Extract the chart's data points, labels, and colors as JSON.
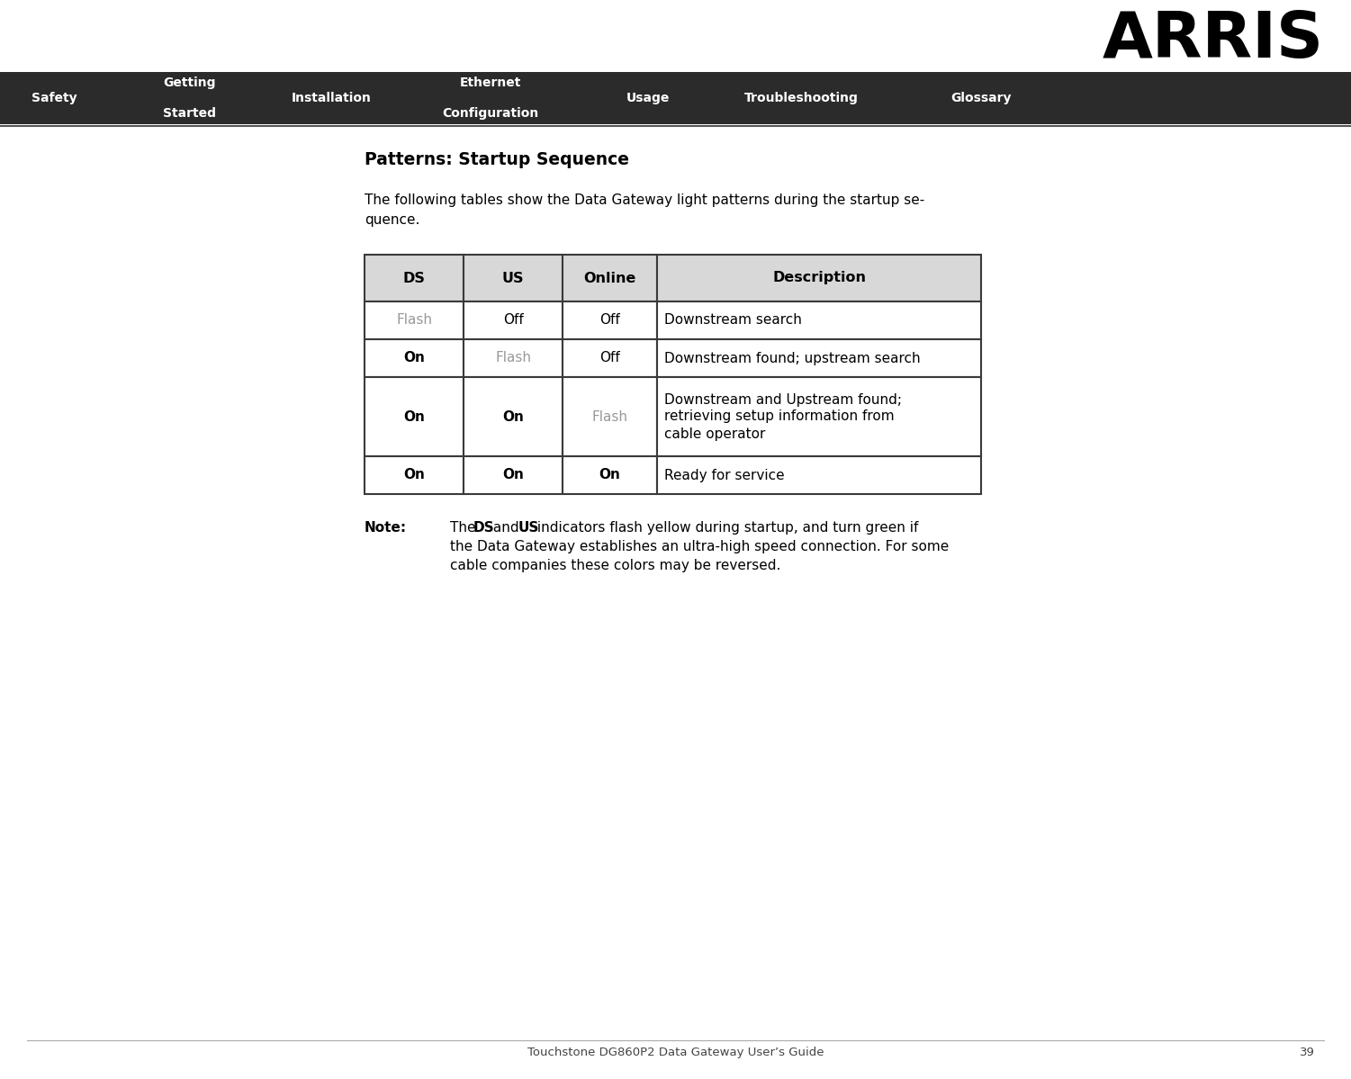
{
  "bg_color": "#ffffff",
  "logo_text": "ARRIS",
  "nav_bg": "#2b2b2b",
  "nav_text_color": "#ffffff",
  "nav_items": [
    {
      "line1": "Safety",
      "line2": ""
    },
    {
      "line1": "Getting",
      "line2": "Started"
    },
    {
      "line1": "Installation",
      "line2": ""
    },
    {
      "line1": "Ethernet",
      "line2": "Configuration"
    },
    {
      "line1": "Usage",
      "line2": ""
    },
    {
      "line1": "Troubleshooting",
      "line2": ""
    },
    {
      "line1": "Glossary",
      "line2": ""
    }
  ],
  "section_title": "Patterns: Startup Sequence",
  "intro_line1": "The following tables show the Data Gateway light patterns during the startup se-",
  "intro_line2": "quence.",
  "table_headers": [
    "DS",
    "US",
    "Online",
    "Description"
  ],
  "table_rows": [
    {
      "ds": "Flash",
      "us": "Off",
      "online": "Off",
      "desc": [
        "Downstream search"
      ],
      "ds_bold": false,
      "us_bold": false,
      "online_bold": false
    },
    {
      "ds": "On",
      "us": "Flash",
      "online": "Off",
      "desc": [
        "Downstream found; upstream search"
      ],
      "ds_bold": true,
      "us_bold": false,
      "online_bold": false
    },
    {
      "ds": "On",
      "us": "On",
      "online": "Flash",
      "desc": [
        "Downstream and Upstream found;",
        "retrieving setup information from",
        "cable operator"
      ],
      "ds_bold": true,
      "us_bold": true,
      "online_bold": false
    },
    {
      "ds": "On",
      "us": "On",
      "online": "On",
      "desc": [
        "Ready for service"
      ],
      "ds_bold": true,
      "us_bold": true,
      "online_bold": true
    }
  ],
  "flash_color": "#999999",
  "on_color": "#000000",
  "off_color": "#000000",
  "note_label": "Note",
  "note_lines": [
    "The __DS__ and __US__ indicators flash yellow during startup, and turn green if",
    "the Data Gateway establishes an ultra-high speed connection. For some",
    "cable companies these colors may be reversed."
  ],
  "footer_text": "Touchstone DG860P2 Data Gateway User’s Guide",
  "footer_page": "39",
  "table_border_color": "#3a3a3a",
  "header_fill": "#d8d8d8",
  "row_fill": "#ffffff",
  "fig_w": 15.01,
  "fig_h": 11.99,
  "dpi": 100
}
